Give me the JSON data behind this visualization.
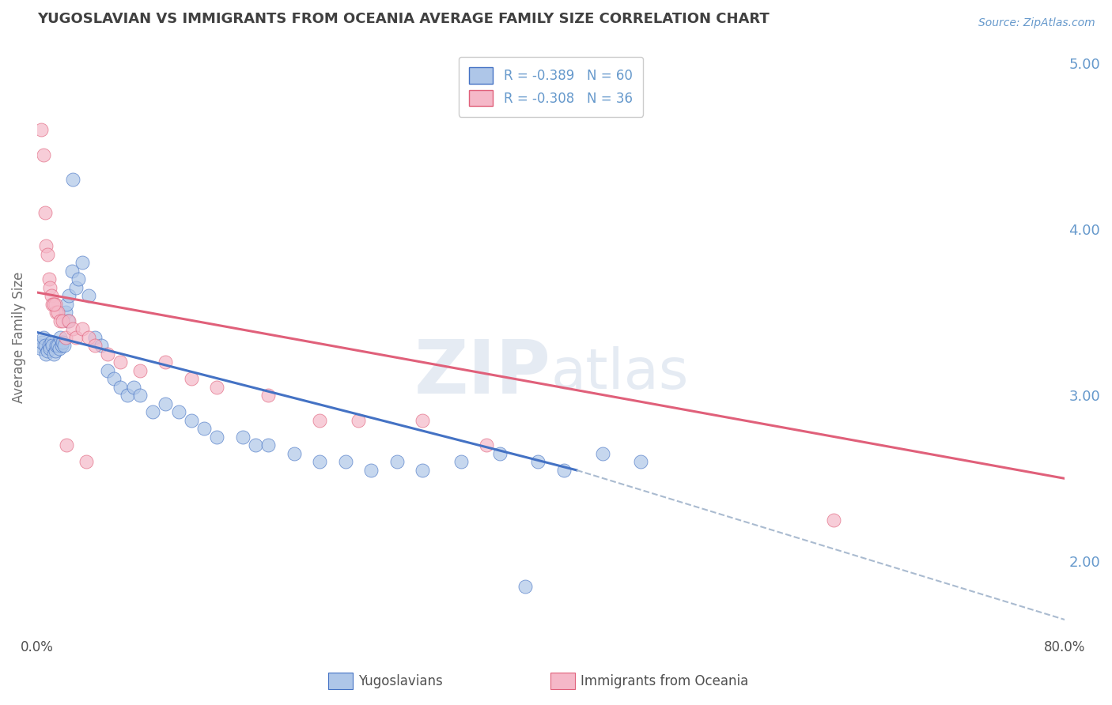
{
  "title": "YUGOSLAVIAN VS IMMIGRANTS FROM OCEANIA AVERAGE FAMILY SIZE CORRELATION CHART",
  "source": "Source: ZipAtlas.com",
  "ylabel": "Average Family Size",
  "legend_blue_r": "R = -0.389",
  "legend_blue_n": "N = 60",
  "legend_pink_r": "R = -0.308",
  "legend_pink_n": "N = 36",
  "legend_label_blue": "Yugoslavians",
  "legend_label_pink": "Immigrants from Oceania",
  "xlim": [
    0.0,
    80.0
  ],
  "ylim": [
    1.55,
    5.15
  ],
  "yticks_right": [
    2.0,
    3.0,
    4.0,
    5.0
  ],
  "color_blue_fill": "#aec6e8",
  "color_pink_fill": "#f5b8c8",
  "color_line_blue": "#4472c4",
  "color_line_pink": "#e0607a",
  "color_dashed": "#aabbd0",
  "watermark_zip": "ZIP",
  "watermark_atlas": "atlas",
  "background_color": "#ffffff",
  "grid_color": "#cccccc",
  "title_color": "#404040",
  "source_color": "#6699cc",
  "axis_label_color": "#707070",
  "right_tick_color": "#6699cc",
  "blue_scatter_x": [
    0.2,
    0.3,
    0.4,
    0.5,
    0.6,
    0.7,
    0.8,
    0.9,
    1.0,
    1.1,
    1.2,
    1.3,
    1.4,
    1.5,
    1.6,
    1.7,
    1.8,
    1.9,
    2.0,
    2.1,
    2.2,
    2.3,
    2.4,
    2.5,
    2.7,
    2.8,
    3.0,
    3.2,
    3.5,
    4.0,
    4.5,
    5.0,
    5.5,
    6.0,
    6.5,
    7.0,
    7.5,
    8.0,
    9.0,
    10.0,
    11.0,
    12.0,
    13.0,
    14.0,
    16.0,
    17.0,
    18.0,
    20.0,
    22.0,
    24.0,
    26.0,
    28.0,
    30.0,
    33.0,
    36.0,
    39.0,
    41.0,
    44.0,
    47.0,
    38.0
  ],
  "blue_scatter_y": [
    3.3,
    3.28,
    3.32,
    3.35,
    3.3,
    3.25,
    3.27,
    3.3,
    3.28,
    3.32,
    3.3,
    3.25,
    3.27,
    3.3,
    3.3,
    3.28,
    3.35,
    3.3,
    3.32,
    3.3,
    3.5,
    3.55,
    3.45,
    3.6,
    3.75,
    4.3,
    3.65,
    3.7,
    3.8,
    3.6,
    3.35,
    3.3,
    3.15,
    3.1,
    3.05,
    3.0,
    3.05,
    3.0,
    2.9,
    2.95,
    2.9,
    2.85,
    2.8,
    2.75,
    2.75,
    2.7,
    2.7,
    2.65,
    2.6,
    2.6,
    2.55,
    2.6,
    2.55,
    2.6,
    2.65,
    2.6,
    2.55,
    2.65,
    2.6,
    1.85
  ],
  "pink_scatter_x": [
    0.3,
    0.5,
    0.6,
    0.7,
    0.8,
    0.9,
    1.0,
    1.1,
    1.2,
    1.4,
    1.5,
    1.6,
    1.8,
    2.0,
    2.2,
    2.5,
    2.8,
    3.0,
    3.5,
    4.0,
    4.5,
    5.5,
    6.5,
    8.0,
    10.0,
    12.0,
    14.0,
    18.0,
    22.0,
    25.0,
    30.0,
    35.0,
    62.0,
    3.8,
    2.3,
    1.3
  ],
  "pink_scatter_y": [
    4.6,
    4.45,
    4.1,
    3.9,
    3.85,
    3.7,
    3.65,
    3.6,
    3.55,
    3.55,
    3.5,
    3.5,
    3.45,
    3.45,
    3.35,
    3.45,
    3.4,
    3.35,
    3.4,
    3.35,
    3.3,
    3.25,
    3.2,
    3.15,
    3.2,
    3.1,
    3.05,
    3.0,
    2.85,
    2.85,
    2.85,
    2.7,
    2.25,
    2.6,
    2.7,
    3.55
  ],
  "blue_line_x": [
    0.0,
    42.0
  ],
  "blue_line_y": [
    3.38,
    2.55
  ],
  "pink_line_x": [
    0.0,
    80.0
  ],
  "pink_line_y": [
    3.62,
    2.5
  ],
  "dashed_line_x": [
    42.0,
    80.0
  ],
  "dashed_line_y": [
    2.55,
    1.65
  ]
}
